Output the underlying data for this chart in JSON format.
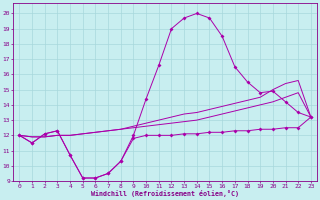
{
  "xlabel": "Windchill (Refroidissement éolien,°C)",
  "bg_color": "#c8eef0",
  "grid_color": "#a8d8dc",
  "line_color": "#aa00aa",
  "xlim": [
    -0.5,
    23.5
  ],
  "ylim": [
    9,
    20.7
  ],
  "yticks": [
    9,
    10,
    11,
    12,
    13,
    14,
    15,
    16,
    17,
    18,
    19,
    20
  ],
  "xticks": [
    0,
    1,
    2,
    3,
    4,
    5,
    6,
    7,
    8,
    9,
    10,
    11,
    12,
    13,
    14,
    15,
    16,
    17,
    18,
    19,
    20,
    21,
    22,
    23
  ],
  "line_bottom_x": [
    0,
    1,
    2,
    3,
    4,
    5,
    6,
    7,
    8,
    9,
    10,
    11,
    12,
    13,
    14,
    15,
    16,
    17,
    18,
    19,
    20,
    21,
    22,
    23
  ],
  "line_bottom_y": [
    12.0,
    11.5,
    12.1,
    12.3,
    10.7,
    9.2,
    9.2,
    9.5,
    10.3,
    11.8,
    12.0,
    12.0,
    12.0,
    12.1,
    12.1,
    12.2,
    12.2,
    12.3,
    12.3,
    12.4,
    12.4,
    12.5,
    12.5,
    13.2
  ],
  "line_top_x": [
    0,
    1,
    2,
    3,
    4,
    5,
    6,
    7,
    8,
    9,
    10,
    11,
    12,
    13,
    14,
    15,
    16,
    17,
    18,
    19,
    20,
    21,
    22,
    23
  ],
  "line_top_y": [
    12.0,
    11.5,
    12.1,
    12.3,
    10.7,
    9.2,
    9.2,
    9.5,
    10.3,
    12.0,
    14.4,
    16.6,
    19.0,
    19.7,
    20.0,
    19.7,
    18.5,
    16.5,
    15.5,
    14.8,
    14.9,
    14.2,
    13.5,
    13.2
  ],
  "line_mid1_x": [
    0,
    1,
    2,
    3,
    4,
    5,
    6,
    7,
    8,
    9,
    10,
    11,
    12,
    13,
    14,
    15,
    16,
    17,
    18,
    19,
    20,
    21,
    22,
    23
  ],
  "line_mid1_y": [
    12.0,
    11.9,
    11.9,
    12.0,
    12.0,
    12.1,
    12.2,
    12.3,
    12.4,
    12.5,
    12.6,
    12.7,
    12.8,
    12.9,
    13.0,
    13.2,
    13.4,
    13.6,
    13.8,
    14.0,
    14.2,
    14.5,
    14.8,
    13.2
  ],
  "line_mid2_x": [
    0,
    1,
    2,
    3,
    4,
    5,
    6,
    7,
    8,
    9,
    10,
    11,
    12,
    13,
    14,
    15,
    16,
    17,
    18,
    19,
    20,
    21,
    22,
    23
  ],
  "line_mid2_y": [
    12.0,
    11.9,
    11.9,
    12.0,
    12.0,
    12.1,
    12.2,
    12.3,
    12.4,
    12.6,
    12.8,
    13.0,
    13.2,
    13.4,
    13.5,
    13.7,
    13.9,
    14.1,
    14.3,
    14.5,
    15.0,
    15.4,
    15.6,
    13.2
  ]
}
